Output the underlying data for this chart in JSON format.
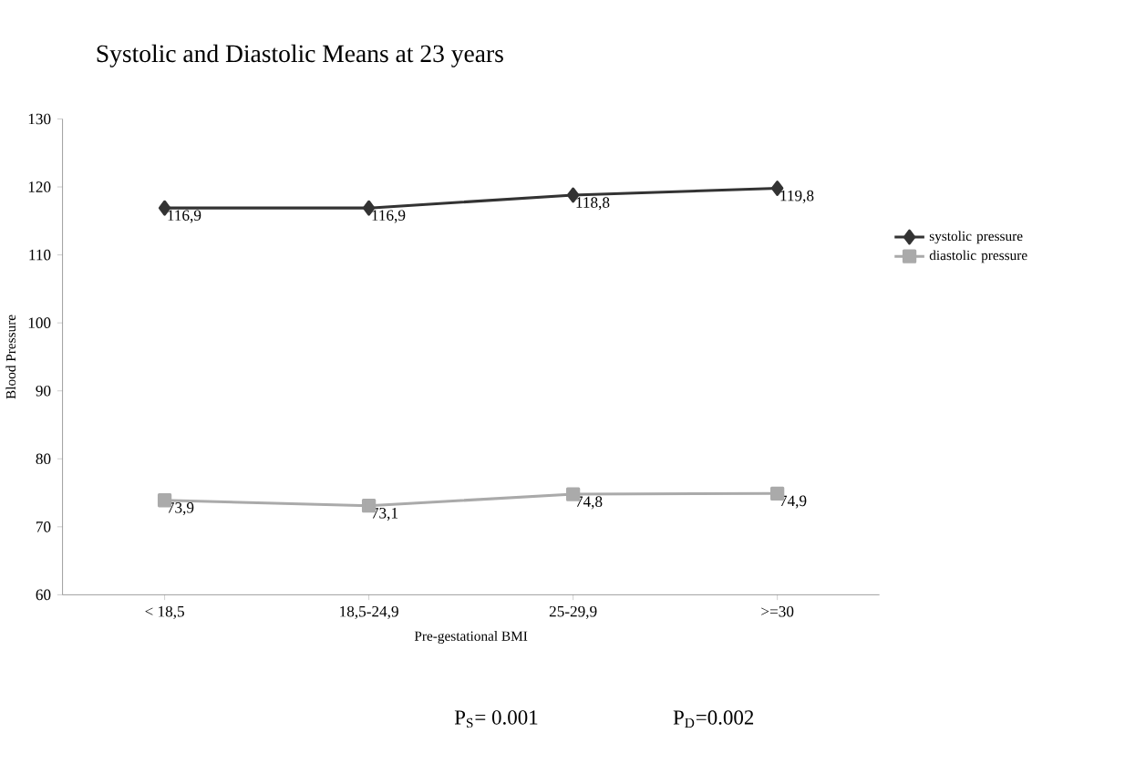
{
  "chart_data": {
    "type": "line",
    "title": "Systolic and Diastolic Means at 23 years",
    "xlabel": "Pre-gestational BMI",
    "ylabel": "Blood Pressure",
    "categories": [
      "< 18,5",
      "18,5-24,9",
      "25-29,9",
      ">=30"
    ],
    "series": [
      {
        "name": "systolic pressure",
        "color": "#333333",
        "marker": "diamond",
        "values": [
          116.9,
          116.9,
          118.8,
          119.8
        ],
        "value_labels": [
          "116,9",
          "116,9",
          "118,8",
          "119,8"
        ]
      },
      {
        "name": "diastolic pressure",
        "color": "#aaaaaa",
        "marker": "square",
        "values": [
          73.9,
          73.1,
          74.8,
          74.9
        ],
        "value_labels": [
          "73,9",
          "73,1",
          "74,8",
          "74,9"
        ]
      }
    ],
    "ylim": [
      60,
      130
    ],
    "yticks": [
      60,
      70,
      80,
      90,
      100,
      110,
      120,
      130
    ],
    "grid": false,
    "legend": "right",
    "line_style": "solid",
    "annotations": [
      "P$_{S}$= 0.001",
      "P$_{D}$=0.002"
    ]
  }
}
